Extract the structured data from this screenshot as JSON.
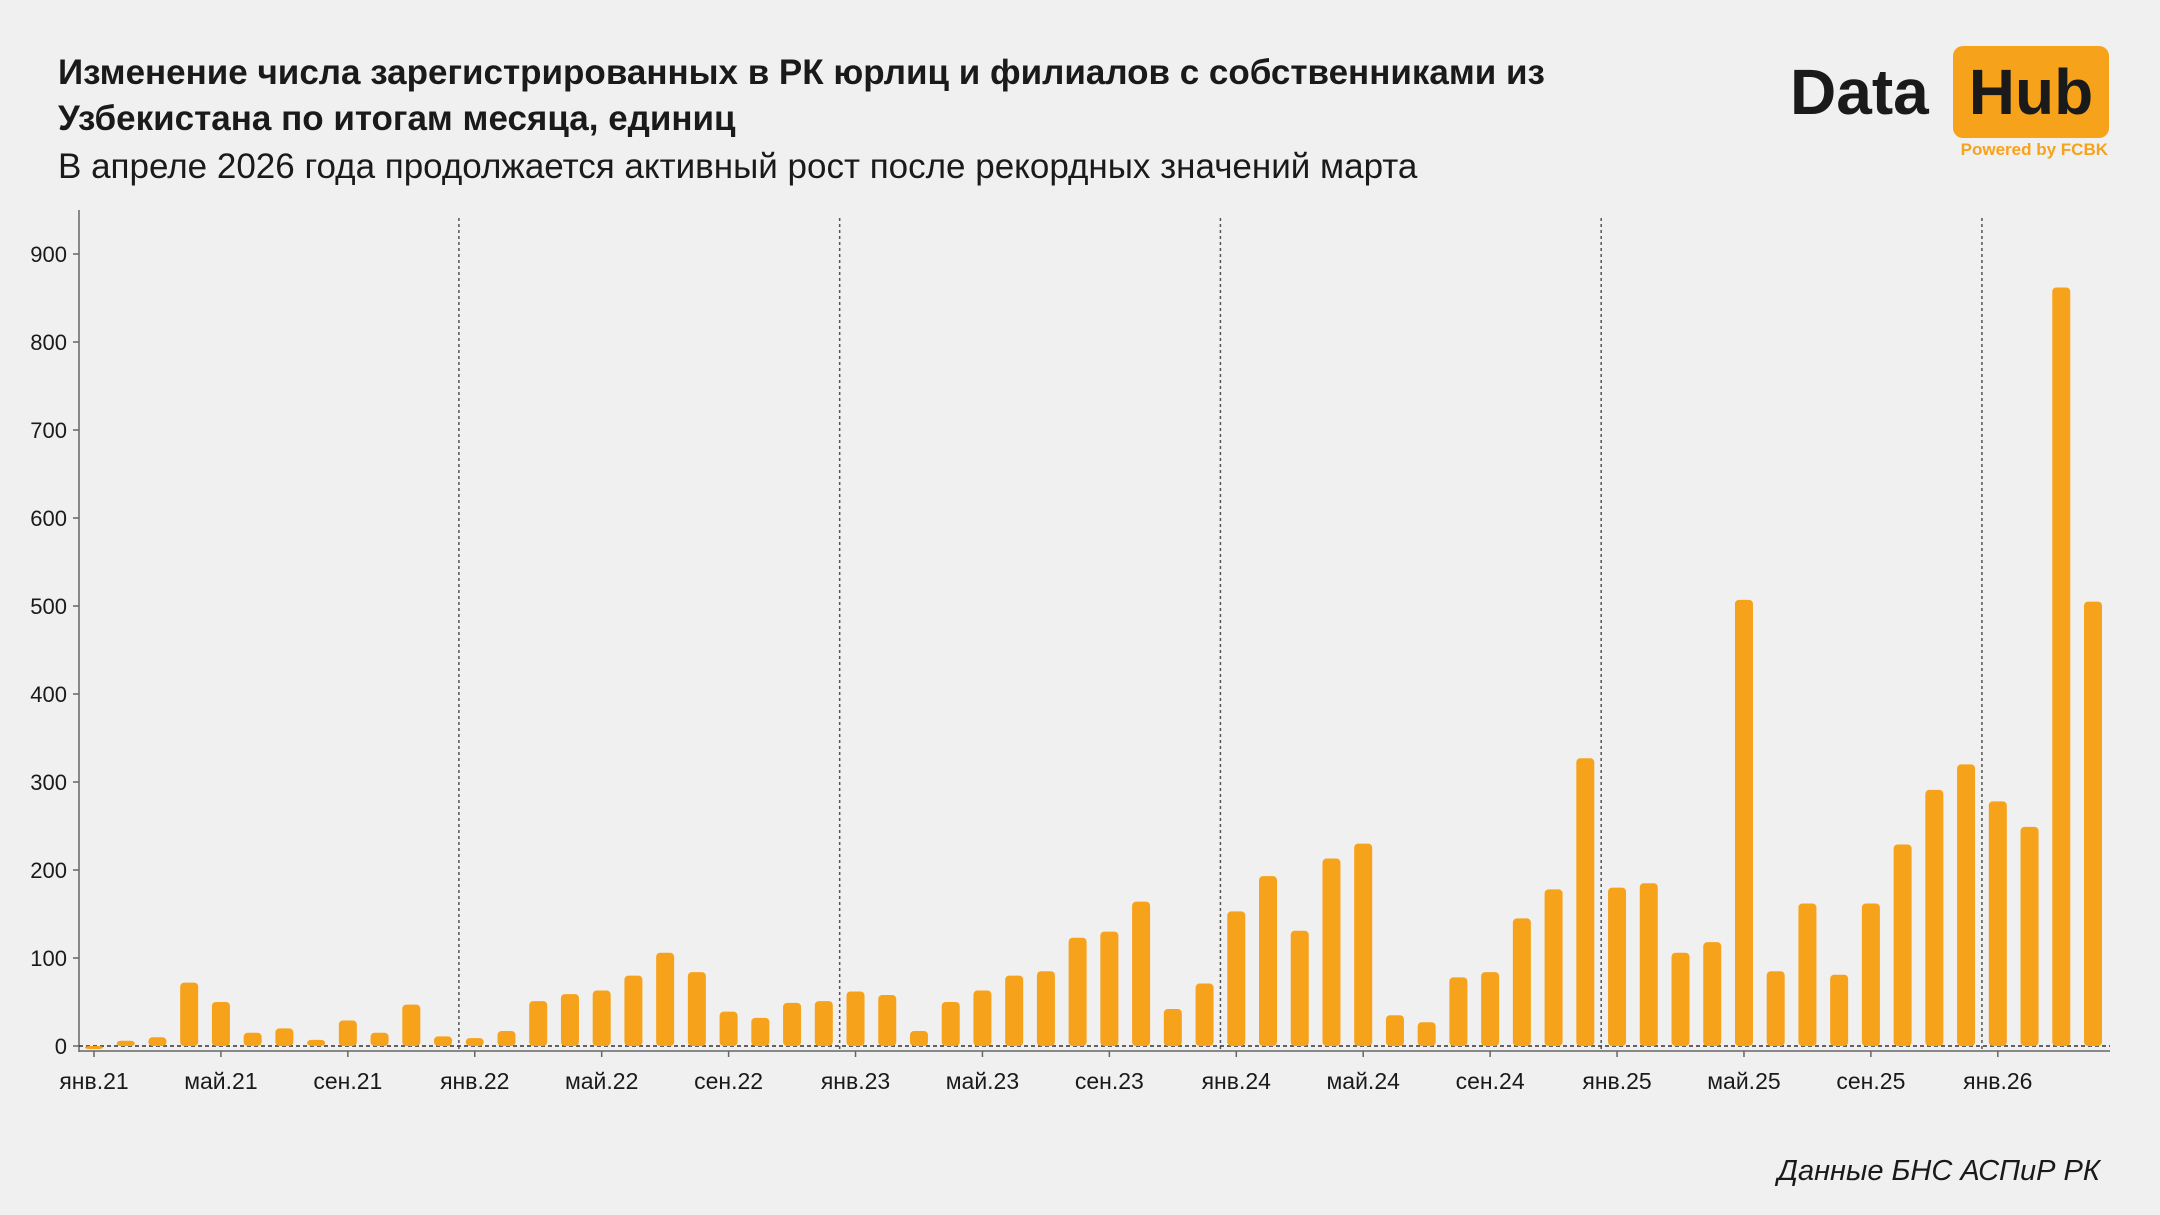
{
  "header": {
    "title": "Изменение числа зарегистрированных в РК юрлиц и филиалов с собственниками из Узбекистана по итогам месяца, единиц",
    "subtitle": "В апреле 2026 года продолжается активный рост после рекордных значений марта"
  },
  "logo": {
    "word1": "Data",
    "word2": "Hub",
    "tagline": "Powered by FCBK"
  },
  "source": "Данные БНС АСПиР РК",
  "colors": {
    "bar": "#f7a21b",
    "text": "#1a1a1a",
    "background": "#f0f0f0"
  },
  "chart_data": {
    "type": "bar",
    "title": "Изменение числа зарегистрированных в РК юрлиц и филиалов с собственниками из Узбекистана по итогам месяца, единиц",
    "subtitle": "В апреле 2026 года продолжается активный рост после рекордных значений марта",
    "xlabel": "",
    "ylabel": "",
    "ylim": [
      0,
      950
    ],
    "yticks": [
      0,
      100,
      200,
      300,
      400,
      500,
      600,
      700,
      800,
      900
    ],
    "x_tick_labels": [
      {
        "index": 0,
        "label": "янв.21"
      },
      {
        "index": 4,
        "label": "май.21"
      },
      {
        "index": 8,
        "label": "сен.21"
      },
      {
        "index": 12,
        "label": "янв.22"
      },
      {
        "index": 16,
        "label": "май.22"
      },
      {
        "index": 20,
        "label": "сен.22"
      },
      {
        "index": 24,
        "label": "янв.23"
      },
      {
        "index": 28,
        "label": "май.23"
      },
      {
        "index": 32,
        "label": "сен.23"
      },
      {
        "index": 36,
        "label": "янв.24"
      },
      {
        "index": 40,
        "label": "май.24"
      },
      {
        "index": 44,
        "label": "сен.24"
      },
      {
        "index": 48,
        "label": "янв.25"
      },
      {
        "index": 52,
        "label": "май.25"
      },
      {
        "index": 56,
        "label": "сен.25"
      },
      {
        "index": 60,
        "label": "янв.26"
      }
    ],
    "year_separators_before_index": [
      12,
      24,
      36,
      48,
      60
    ],
    "categories": [
      "янв.21",
      "фев.21",
      "мар.21",
      "апр.21",
      "май.21",
      "июн.21",
      "июл.21",
      "авг.21",
      "сен.21",
      "окт.21",
      "ноя.21",
      "дек.21",
      "янв.22",
      "фев.22",
      "мар.22",
      "апр.22",
      "май.22",
      "июн.22",
      "июл.22",
      "авг.22",
      "сен.22",
      "окт.22",
      "ноя.22",
      "дек.22",
      "янв.23",
      "фев.23",
      "мар.23",
      "апр.23",
      "май.23",
      "июн.23",
      "июл.23",
      "авг.23",
      "сен.23",
      "окт.23",
      "ноя.23",
      "дек.23",
      "янв.24",
      "фев.24",
      "мар.24",
      "апр.24",
      "май.24",
      "июн.24",
      "июл.24",
      "авг.24",
      "сен.24",
      "окт.24",
      "ноя.24",
      "дек.24",
      "янв.25",
      "фев.25",
      "мар.25",
      "апр.25",
      "май.25",
      "июн.25",
      "июл.25",
      "авг.25",
      "сен.25",
      "окт.25",
      "ноя.25",
      "дек.25",
      "янв.26",
      "фев.26",
      "мар.26",
      "апр.26"
    ],
    "values": [
      -2,
      6,
      10,
      72,
      50,
      15,
      20,
      7,
      29,
      15,
      47,
      11,
      9,
      17,
      51,
      59,
      63,
      80,
      106,
      84,
      39,
      32,
      49,
      51,
      62,
      58,
      17,
      50,
      63,
      80,
      85,
      123,
      130,
      164,
      42,
      71,
      153,
      193,
      131,
      213,
      230,
      35,
      27,
      78,
      84,
      145,
      178,
      327,
      180,
      185,
      106,
      118,
      507,
      85,
      162,
      81,
      162,
      229,
      291,
      320,
      278,
      249,
      862,
      505
    ]
  }
}
